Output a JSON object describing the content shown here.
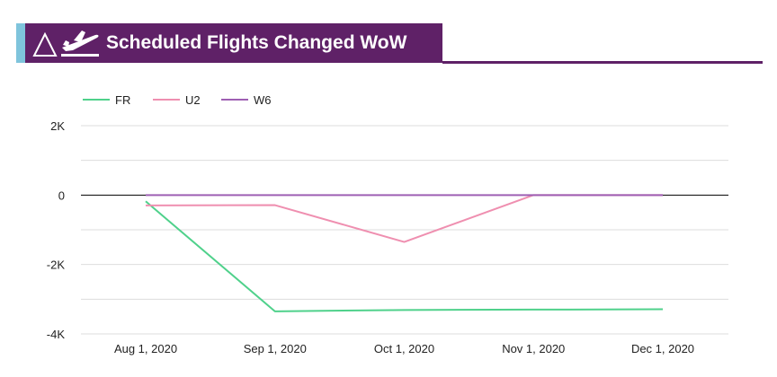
{
  "header": {
    "title": "Scheduled Flights Changed WoW",
    "icons": [
      "delta-icon",
      "airplane-takeoff-icon"
    ],
    "colors": {
      "band": "#5f2167",
      "accent": "#7fc4dc",
      "text": "#ffffff"
    }
  },
  "chart_data": {
    "type": "line",
    "x": [
      "Aug 1, 2020",
      "Sep 1, 2020",
      "Oct 1, 2020",
      "Nov 1, 2020",
      "Dec 1, 2020"
    ],
    "yticks": [
      2000,
      0,
      -2000,
      -4000
    ],
    "ytick_labels": [
      "2K",
      "0",
      "-2K",
      "-4K"
    ],
    "ylim": [
      -4000,
      2000
    ],
    "grid": true,
    "legend": "top-left",
    "series": [
      {
        "name": "FR",
        "color": "#4fd18b",
        "values": [
          -180,
          -3350,
          -3310,
          -3300,
          -3290
        ]
      },
      {
        "name": "U2",
        "color": "#ef8fb0",
        "values": [
          -300,
          -290,
          -1350,
          0,
          0
        ]
      },
      {
        "name": "W6",
        "color": "#9e5fb3",
        "values": [
          0,
          0,
          0,
          0,
          0
        ]
      }
    ]
  }
}
